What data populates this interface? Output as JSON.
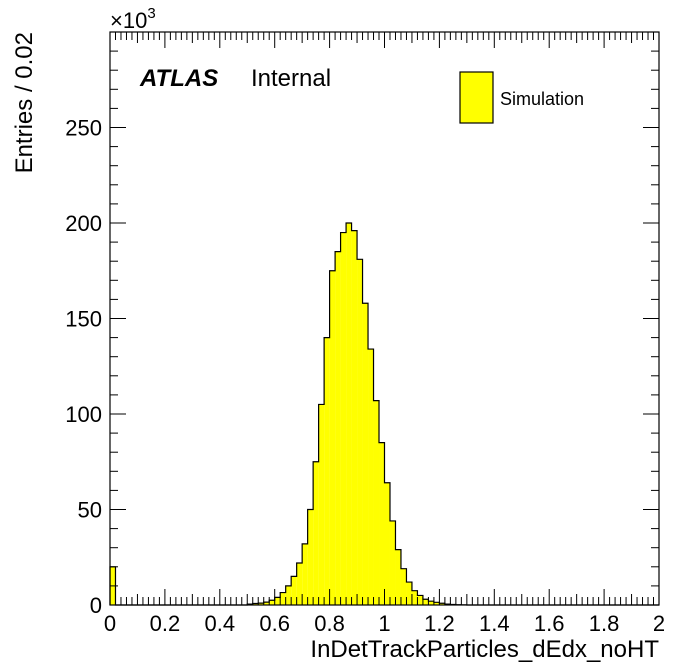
{
  "chart_data": {
    "type": "bar",
    "xlabel": "InDetTrackParticles_dEdx_noHT",
    "ylabel": "Entries / 0.02",
    "y_exponent_base": "×10",
    "y_exponent_power": "3",
    "xlim": [
      0,
      2
    ],
    "ylim": [
      0,
      300000
    ],
    "x_ticks": [
      "0",
      "0.2",
      "0.4",
      "0.6",
      "0.8",
      "1",
      "1.2",
      "1.4",
      "1.6",
      "1.8",
      "2"
    ],
    "y_ticks": [
      "0",
      "50",
      "100",
      "150",
      "200",
      "250"
    ],
    "bin_width": 0.02,
    "bin_edges_start": 0,
    "values": [
      20000,
      0,
      0,
      0,
      0,
      0,
      0,
      0,
      0,
      0,
      0,
      0,
      0,
      0,
      0,
      0,
      0,
      0,
      0,
      0,
      0,
      0,
      0,
      0,
      0,
      500,
      800,
      1000,
      1500,
      2500,
      4000,
      6500,
      10000,
      15000,
      22000,
      32000,
      50000,
      75000,
      105000,
      140000,
      175000,
      185000,
      195000,
      200000,
      196000,
      181000,
      158000,
      134000,
      107000,
      85000,
      64000,
      44000,
      29000,
      19000,
      12000,
      7500,
      5000,
      3000,
      2000,
      1400,
      900,
      500,
      300,
      150,
      80,
      0,
      0,
      0,
      0,
      0,
      0,
      0,
      0,
      0,
      0,
      0,
      0,
      0,
      0,
      0,
      0,
      0,
      0,
      0,
      0,
      0,
      0,
      0,
      0,
      0,
      0,
      0,
      0,
      0,
      0,
      0,
      0,
      0,
      0,
      0
    ],
    "series": [
      {
        "name": "Simulation"
      }
    ],
    "fill_color": "#ffff00",
    "line_color": "#000000",
    "legend_position": "top-right",
    "grid": false
  },
  "labels": {
    "atlas": "ATLAS",
    "atlas_status": "Internal"
  }
}
